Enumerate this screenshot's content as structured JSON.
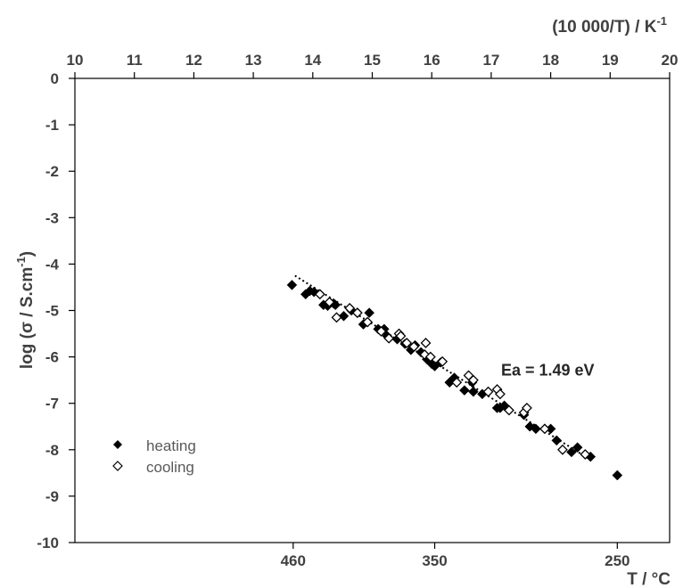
{
  "chart_data": {
    "type": "scatter",
    "top_axis": {
      "label": "(10 000/T) / K",
      "label_superscript": "-1",
      "range": [
        10,
        20
      ],
      "ticks": [
        "10",
        "11",
        "12",
        "13",
        "14",
        "15",
        "16",
        "17",
        "18",
        "19",
        "20"
      ]
    },
    "bottom_axis": {
      "label": "T / °C",
      "ticks": [
        {
          "label": "460",
          "value": 13.67
        },
        {
          "label": "350",
          "value": 16.05
        },
        {
          "label": "250",
          "value": 19.12
        }
      ]
    },
    "y_axis": {
      "label_prefix": "log (",
      "label_sigma": "σ",
      "label_units": " / S.cm",
      "label_superscript": "-1",
      "label_suffix": ")",
      "range": [
        -10,
        0
      ],
      "ticks": [
        "0",
        "-1",
        "-2",
        "-3",
        "-4",
        "-5",
        "-6",
        "-7",
        "-8",
        "-9",
        "-10"
      ]
    },
    "series": [
      {
        "name": "heating",
        "marker": "filled-diamond",
        "color": "#000000",
        "x": [
          13.65,
          13.88,
          13.95,
          14.02,
          14.18,
          14.25,
          14.35,
          14.38,
          14.52,
          14.65,
          14.75,
          14.85,
          14.95,
          15.1,
          15.2,
          15.25,
          15.42,
          15.55,
          15.65,
          15.72,
          15.82,
          15.92,
          16.0,
          16.05,
          16.15,
          16.3,
          16.38,
          16.55,
          16.68,
          16.7,
          16.85,
          17.1,
          17.15,
          17.22,
          17.55,
          17.65,
          17.75,
          18.0,
          18.1,
          18.35,
          18.45,
          18.67,
          19.12
        ],
        "y": [
          -4.45,
          -4.65,
          -4.58,
          -4.6,
          -4.88,
          -4.9,
          -4.85,
          -4.88,
          -5.12,
          -5.0,
          -5.05,
          -5.3,
          -5.05,
          -5.4,
          -5.4,
          -5.55,
          -5.62,
          -5.72,
          -5.85,
          -5.75,
          -5.9,
          -6.05,
          -6.15,
          -6.2,
          -6.12,
          -6.55,
          -6.45,
          -6.72,
          -6.55,
          -6.75,
          -6.8,
          -7.1,
          -7.1,
          -7.05,
          -7.25,
          -7.5,
          -7.55,
          -7.55,
          -7.8,
          -8.05,
          -7.95,
          -8.15,
          -8.55
        ]
      },
      {
        "name": "cooling",
        "marker": "open-diamond",
        "color": "#000000",
        "x": [
          14.12,
          14.28,
          14.4,
          14.62,
          14.75,
          14.92,
          15.15,
          15.28,
          15.45,
          15.48,
          15.58,
          15.7,
          15.88,
          15.9,
          15.98,
          16.18,
          16.42,
          16.62,
          16.7,
          16.95,
          17.1,
          17.15,
          17.3,
          17.55,
          17.6,
          17.9,
          18.2,
          18.58
        ],
        "y": [
          -4.65,
          -4.82,
          -5.15,
          -4.95,
          -5.05,
          -5.25,
          -5.45,
          -5.6,
          -5.5,
          -5.55,
          -5.7,
          -5.78,
          -5.95,
          -5.7,
          -6.0,
          -6.1,
          -6.55,
          -6.4,
          -6.5,
          -6.75,
          -6.7,
          -6.8,
          -7.15,
          -7.2,
          -7.1,
          -7.55,
          -8.0,
          -8.1
        ]
      }
    ],
    "fit_line": {
      "style": "dotted",
      "color": "#000000",
      "x": [
        13.7,
        18.65
      ],
      "y": [
        -4.25,
        -8.2
      ]
    },
    "annotations": [
      {
        "text": "Ea = 1.49 eV",
        "x": 17.95,
        "y": -6.4
      }
    ],
    "legend": {
      "placement": "bottom-left"
    },
    "grid": false
  }
}
